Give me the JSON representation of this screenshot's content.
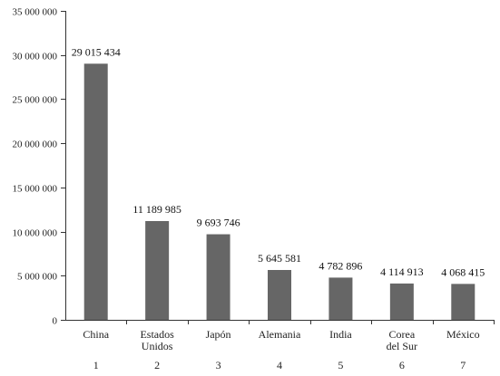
{
  "chart_data": {
    "type": "bar",
    "categories": [
      [
        "China"
      ],
      [
        "Estados",
        "Unidos"
      ],
      [
        "Japón"
      ],
      [
        "Alemania"
      ],
      [
        "India"
      ],
      [
        "Corea",
        "del Sur"
      ],
      [
        "México"
      ]
    ],
    "ranks": [
      "1",
      "2",
      "3",
      "4",
      "5",
      "6",
      "7"
    ],
    "values": [
      29015434,
      11189985,
      9693746,
      5645581,
      4782896,
      4114913,
      4068415
    ],
    "data_labels": [
      "29 015 434",
      "11 189 985",
      "9 693 746",
      "5 645 581",
      "4 782 896",
      "4 114 913",
      "4 068 415"
    ],
    "ylim": [
      0,
      35000000
    ],
    "yticks": [
      0,
      5000000,
      10000000,
      15000000,
      20000000,
      25000000,
      30000000,
      35000000
    ],
    "ytick_labels": [
      "0",
      "5 000 000",
      "10 000 000",
      "15 000 000",
      "20 000 000",
      "25 000 000",
      "30 000 000",
      "35 000 000"
    ],
    "bar_color": "#666666",
    "grid": false
  }
}
